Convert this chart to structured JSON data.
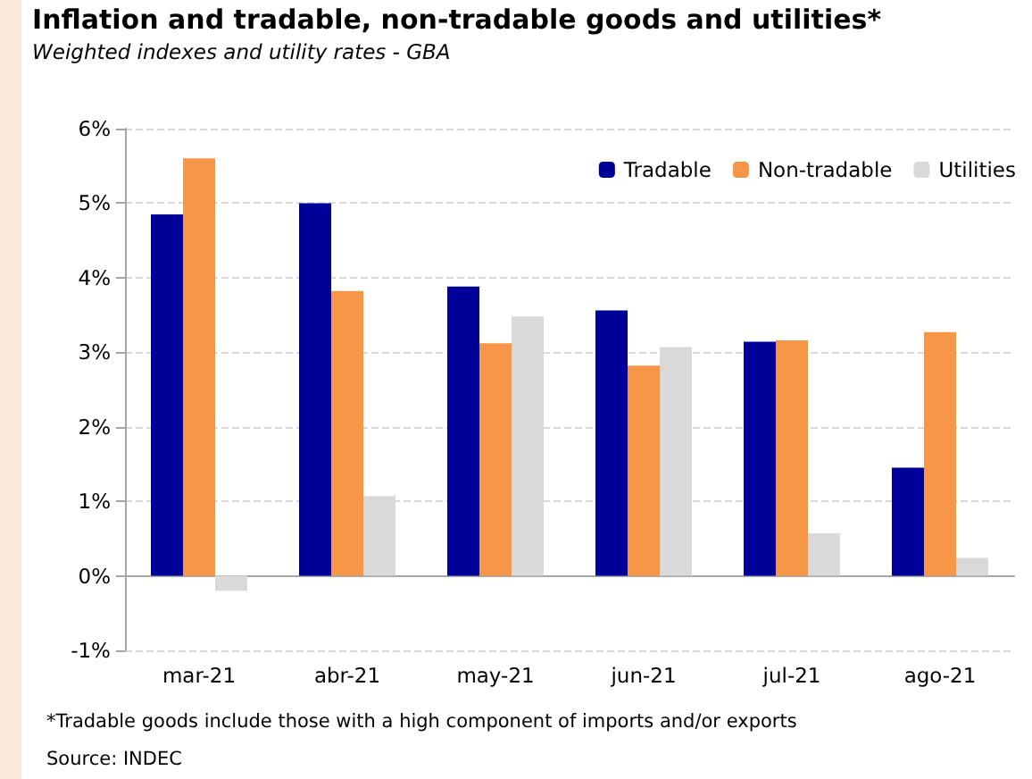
{
  "chart_data": {
    "type": "bar",
    "title": "Inflation and tradable, non-tradable goods and utilities*",
    "subtitle": "Weighted indexes and utility rates - GBA",
    "categories": [
      "mar-21",
      "abr-21",
      "may-21",
      "jun-21",
      "jul-21",
      "ago-21"
    ],
    "series": [
      {
        "name": "Tradable",
        "color": "#000099",
        "values": [
          4.85,
          5.0,
          3.88,
          3.56,
          3.14,
          1.45
        ]
      },
      {
        "name": "Non-tradable",
        "color": "#f79646",
        "values": [
          5.6,
          3.82,
          3.12,
          2.82,
          3.16,
          3.27
        ]
      },
      {
        "name": "Utilities",
        "color": "#d9d9d9",
        "values": [
          -0.2,
          1.07,
          3.48,
          3.07,
          0.57,
          0.24
        ]
      }
    ],
    "ylim": [
      -1,
      6
    ],
    "yticks": [
      {
        "value": -1,
        "label": "-1%"
      },
      {
        "value": 0,
        "label": "0%"
      },
      {
        "value": 1,
        "label": "1%"
      },
      {
        "value": 2,
        "label": "2%"
      },
      {
        "value": 3,
        "label": "3%"
      },
      {
        "value": 4,
        "label": "4%"
      },
      {
        "value": 5,
        "label": "5%"
      },
      {
        "value": 6,
        "label": "6%"
      }
    ],
    "grid": "y",
    "legend": "top right",
    "annotations": [
      "*Tradable goods include those with a high component of imports and/or exports",
      "Source: INDEC"
    ]
  }
}
